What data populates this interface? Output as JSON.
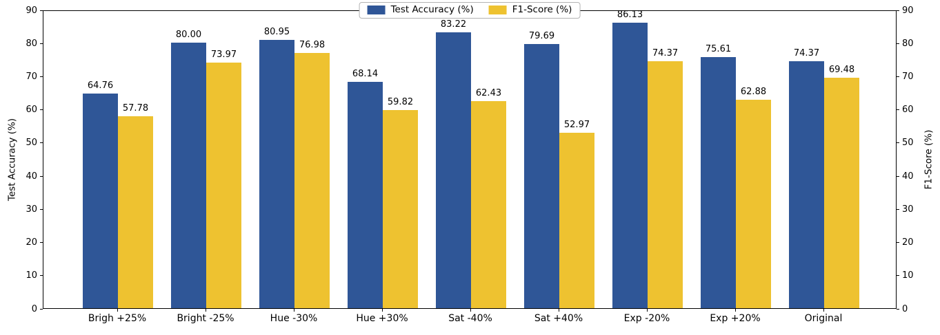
{
  "chart_data": {
    "type": "bar",
    "title": "",
    "categories": [
      "Brigh +25%",
      "Bright -25%",
      "Hue -30%",
      "Hue +30%",
      "Sat -40%",
      "Sat +40%",
      "Exp -20%",
      "Exp +20%",
      "Original"
    ],
    "series": [
      {
        "name": "Test Accuracy (%)",
        "color": "#2f5697",
        "axis": "left",
        "values": [
          64.76,
          80.0,
          80.95,
          68.14,
          83.22,
          79.69,
          86.13,
          75.61,
          74.37
        ]
      },
      {
        "name": "F1-Score (%)",
        "color": "#eec230",
        "axis": "right",
        "values": [
          57.78,
          73.97,
          76.98,
          59.82,
          62.43,
          52.97,
          74.37,
          62.88,
          69.48
        ]
      }
    ],
    "ylabel_left": "Test Accuracy (%)",
    "ylabel_right": "F1-Score (%)",
    "ylim": [
      0,
      90
    ],
    "yticks": [
      0,
      10,
      20,
      30,
      40,
      50,
      60,
      70,
      80,
      90
    ],
    "grid": false,
    "legend_position": "top-center",
    "value_label_decimals": 2
  }
}
